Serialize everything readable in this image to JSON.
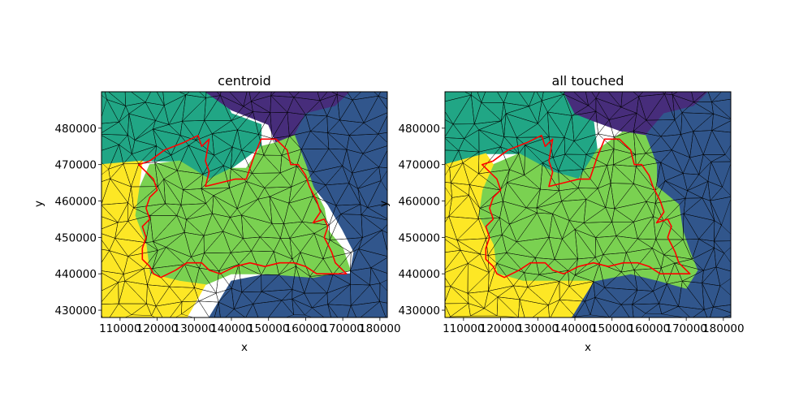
{
  "colors": {
    "purple": "#472d7b",
    "blue": "#31568c",
    "teal": "#21a685",
    "green": "#7ad151",
    "yellow": "#fde725",
    "mesh_edge": "#000000",
    "boundary": "#ff0000"
  },
  "chart_data": [
    {
      "type": "mesh-map",
      "title": "centroid",
      "xlabel": "x",
      "ylabel": "y",
      "xlim": [
        105000,
        182000
      ],
      "ylim": [
        428000,
        490000
      ],
      "xticks": [
        110000,
        120000,
        130000,
        140000,
        150000,
        160000,
        170000,
        180000
      ],
      "yticks": [
        430000,
        440000,
        450000,
        460000,
        470000,
        480000
      ],
      "xtick_labels": [
        "110000",
        "120000",
        "130000",
        "140000",
        "150000",
        "160000",
        "170000",
        "180000"
      ],
      "ytick_labels": [
        "430000",
        "440000",
        "450000",
        "460000",
        "470000",
        "480000"
      ],
      "regions": [
        {
          "color": "teal",
          "points": [
            [
              105000,
              490000
            ],
            [
              137000,
              490000
            ],
            [
              140000,
              484000
            ],
            [
              148000,
              481000
            ],
            [
              148000,
              475000
            ],
            [
              140000,
              469000
            ],
            [
              134000,
              466000
            ],
            [
              126000,
              471000
            ],
            [
              116000,
              471000
            ],
            [
              105000,
              469000
            ]
          ]
        },
        {
          "color": "purple",
          "points": [
            [
              133000,
              490000
            ],
            [
              172000,
              490000
            ],
            [
              168000,
              486000
            ],
            [
              160000,
              484000
            ],
            [
              157000,
              478000
            ],
            [
              152000,
              476000
            ],
            [
              150000,
              481000
            ],
            [
              140000,
              485000
            ]
          ]
        },
        {
          "color": "blue",
          "points": [
            [
              182000,
              490000
            ],
            [
              182000,
              428000
            ],
            [
              134000,
              428000
            ],
            [
              140000,
              438000
            ],
            [
              150000,
              440000
            ],
            [
              163000,
              440000
            ],
            [
              172000,
              440000
            ],
            [
              173000,
              446000
            ],
            [
              170000,
              452000
            ],
            [
              166000,
              459000
            ],
            [
              162000,
              464000
            ],
            [
              160000,
              470000
            ],
            [
              157000,
              478000
            ],
            [
              160000,
              484000
            ],
            [
              168000,
              486000
            ],
            [
              172000,
              490000
            ]
          ]
        },
        {
          "color": "green",
          "points": [
            [
              118000,
              470000
            ],
            [
              126000,
              471000
            ],
            [
              134000,
              466000
            ],
            [
              140000,
              469000
            ],
            [
              144000,
              469000
            ],
            [
              148000,
              475000
            ],
            [
              152000,
              476000
            ],
            [
              157000,
              478000
            ],
            [
              160000,
              470000
            ],
            [
              162000,
              464000
            ],
            [
              165000,
              458000
            ],
            [
              166000,
              452000
            ],
            [
              170000,
              447000
            ],
            [
              172000,
              441000
            ],
            [
              162000,
              439000
            ],
            [
              150000,
              440000
            ],
            [
              140000,
              440000
            ],
            [
              133000,
              437000
            ],
            [
              126000,
              438000
            ],
            [
              118000,
              440000
            ],
            [
              117000,
              448000
            ],
            [
              114000,
              456000
            ],
            [
              115000,
              463000
            ]
          ]
        },
        {
          "color": "yellow",
          "points": [
            [
              105000,
              470000
            ],
            [
              116000,
              471000
            ],
            [
              115000,
              463000
            ],
            [
              114000,
              456000
            ],
            [
              117000,
              448000
            ],
            [
              118000,
              440000
            ],
            [
              126000,
              438000
            ],
            [
              133000,
              437000
            ],
            [
              128000,
              428000
            ],
            [
              105000,
              428000
            ]
          ]
        }
      ],
      "boundary": [
        [
          115000,
          470000
        ],
        [
          118000,
          471000
        ],
        [
          122000,
          474000
        ],
        [
          127000,
          476000
        ],
        [
          131000,
          478000
        ],
        [
          132000,
          475000
        ],
        [
          134000,
          477000
        ],
        [
          133000,
          471000
        ],
        [
          134000,
          468000
        ],
        [
          133000,
          464000
        ],
        [
          137000,
          465000
        ],
        [
          141000,
          466000
        ],
        [
          144000,
          466000
        ],
        [
          146000,
          472000
        ],
        [
          148000,
          477000
        ],
        [
          152000,
          477000
        ],
        [
          155000,
          474000
        ],
        [
          156000,
          470000
        ],
        [
          158000,
          470000
        ],
        [
          160000,
          467000
        ],
        [
          161000,
          464000
        ],
        [
          163000,
          460000
        ],
        [
          164000,
          457000
        ],
        [
          162000,
          454000
        ],
        [
          165000,
          455000
        ],
        [
          166000,
          453000
        ],
        [
          165000,
          450000
        ],
        [
          166000,
          448000
        ],
        [
          167000,
          446000
        ],
        [
          168000,
          443000
        ],
        [
          170000,
          441000
        ],
        [
          171000,
          440000
        ],
        [
          167000,
          440000
        ],
        [
          163000,
          440000
        ],
        [
          160000,
          442000
        ],
        [
          157000,
          443000
        ],
        [
          153000,
          443000
        ],
        [
          149000,
          442000
        ],
        [
          145000,
          443000
        ],
        [
          141000,
          442000
        ],
        [
          137000,
          440000
        ],
        [
          134000,
          441000
        ],
        [
          132000,
          443000
        ],
        [
          128000,
          443000
        ],
        [
          125000,
          441000
        ],
        [
          121000,
          439000
        ],
        [
          119000,
          440000
        ],
        [
          118000,
          442000
        ],
        [
          116000,
          444000
        ],
        [
          116000,
          447000
        ],
        [
          117000,
          450000
        ],
        [
          116000,
          453000
        ],
        [
          118000,
          455000
        ],
        [
          117000,
          458000
        ],
        [
          118000,
          461000
        ],
        [
          120000,
          463000
        ],
        [
          119000,
          466000
        ]
      ]
    },
    {
      "type": "mesh-map",
      "title": "all touched",
      "xlabel": "x",
      "ylabel": "y",
      "xlim": [
        105000,
        182000
      ],
      "ylim": [
        428000,
        490000
      ],
      "xticks": [
        110000,
        120000,
        130000,
        140000,
        150000,
        160000,
        170000,
        180000
      ],
      "yticks": [
        430000,
        440000,
        450000,
        460000,
        470000,
        480000
      ],
      "xtick_labels": [
        "110000",
        "120000",
        "130000",
        "140000",
        "150000",
        "160000",
        "170000",
        "180000"
      ],
      "ytick_labels": [
        "430000",
        "440000",
        "450000",
        "460000",
        "470000",
        "480000"
      ],
      "regions": [
        {
          "color": "teal",
          "points": [
            [
              105000,
              490000
            ],
            [
              137000,
              490000
            ],
            [
              140000,
              484000
            ],
            [
              145000,
              482000
            ],
            [
              146000,
              474000
            ],
            [
              141000,
              466000
            ],
            [
              134000,
              468000
            ],
            [
              125000,
              473000
            ],
            [
              116000,
              473000
            ],
            [
              105000,
              469000
            ]
          ]
        },
        {
          "color": "purple",
          "points": [
            [
              137000,
              490000
            ],
            [
              176000,
              490000
            ],
            [
              172000,
              486000
            ],
            [
              164000,
              484000
            ],
            [
              159000,
              478000
            ],
            [
              153000,
              479000
            ],
            [
              145000,
              482000
            ],
            [
              140000,
              484000
            ]
          ]
        },
        {
          "color": "blue",
          "points": [
            [
              182000,
              490000
            ],
            [
              182000,
              428000
            ],
            [
              139000,
              428000
            ],
            [
              145000,
              438000
            ],
            [
              155000,
              440000
            ],
            [
              163000,
              438000
            ],
            [
              170000,
              436000
            ],
            [
              173000,
              441000
            ],
            [
              171000,
              446000
            ],
            [
              169000,
              452000
            ],
            [
              168000,
              459000
            ],
            [
              162000,
              464000
            ],
            [
              162000,
              470000
            ],
            [
              159000,
              478000
            ],
            [
              164000,
              484000
            ],
            [
              172000,
              486000
            ],
            [
              176000,
              490000
            ]
          ]
        },
        {
          "color": "green",
          "points": [
            [
              118000,
              470000
            ],
            [
              125000,
              473000
            ],
            [
              134000,
              468000
            ],
            [
              141000,
              466000
            ],
            [
              146000,
              474000
            ],
            [
              153000,
              479000
            ],
            [
              159000,
              478000
            ],
            [
              162000,
              470000
            ],
            [
              162000,
              464000
            ],
            [
              168000,
              459000
            ],
            [
              169000,
              452000
            ],
            [
              171000,
              446000
            ],
            [
              173000,
              441000
            ],
            [
              170000,
              436000
            ],
            [
              163000,
              438000
            ],
            [
              155000,
              440000
            ],
            [
              145000,
              438000
            ],
            [
              135000,
              438000
            ],
            [
              126000,
              438000
            ],
            [
              119000,
              440000
            ],
            [
              118000,
              448000
            ],
            [
              114000,
              456000
            ],
            [
              115000,
              463000
            ]
          ]
        },
        {
          "color": "yellow",
          "points": [
            [
              105000,
              470000
            ],
            [
              116000,
              473000
            ],
            [
              118000,
              470000
            ],
            [
              115000,
              463000
            ],
            [
              114000,
              456000
            ],
            [
              118000,
              448000
            ],
            [
              119000,
              440000
            ],
            [
              126000,
              438000
            ],
            [
              135000,
              438000
            ],
            [
              145000,
              438000
            ],
            [
              139000,
              428000
            ],
            [
              105000,
              428000
            ]
          ]
        }
      ],
      "boundary": [
        [
          115000,
          470000
        ],
        [
          118000,
          471000
        ],
        [
          122000,
          474000
        ],
        [
          127000,
          476000
        ],
        [
          131000,
          478000
        ],
        [
          132000,
          475000
        ],
        [
          134000,
          477000
        ],
        [
          133000,
          471000
        ],
        [
          134000,
          468000
        ],
        [
          133000,
          464000
        ],
        [
          137000,
          465000
        ],
        [
          141000,
          466000
        ],
        [
          144000,
          466000
        ],
        [
          146000,
          472000
        ],
        [
          148000,
          477000
        ],
        [
          152000,
          477000
        ],
        [
          155000,
          474000
        ],
        [
          156000,
          470000
        ],
        [
          158000,
          470000
        ],
        [
          160000,
          467000
        ],
        [
          161000,
          464000
        ],
        [
          163000,
          460000
        ],
        [
          164000,
          457000
        ],
        [
          162000,
          454000
        ],
        [
          165000,
          455000
        ],
        [
          166000,
          453000
        ],
        [
          165000,
          450000
        ],
        [
          166000,
          448000
        ],
        [
          167000,
          446000
        ],
        [
          168000,
          443000
        ],
        [
          170000,
          441000
        ],
        [
          171000,
          440000
        ],
        [
          167000,
          440000
        ],
        [
          163000,
          440000
        ],
        [
          160000,
          442000
        ],
        [
          157000,
          443000
        ],
        [
          153000,
          443000
        ],
        [
          149000,
          442000
        ],
        [
          145000,
          443000
        ],
        [
          141000,
          442000
        ],
        [
          137000,
          440000
        ],
        [
          134000,
          441000
        ],
        [
          132000,
          443000
        ],
        [
          128000,
          443000
        ],
        [
          125000,
          441000
        ],
        [
          121000,
          439000
        ],
        [
          119000,
          440000
        ],
        [
          118000,
          442000
        ],
        [
          116000,
          444000
        ],
        [
          116000,
          447000
        ],
        [
          117000,
          450000
        ],
        [
          116000,
          453000
        ],
        [
          118000,
          455000
        ],
        [
          117000,
          458000
        ],
        [
          118000,
          461000
        ],
        [
          120000,
          463000
        ],
        [
          119000,
          466000
        ]
      ]
    }
  ]
}
